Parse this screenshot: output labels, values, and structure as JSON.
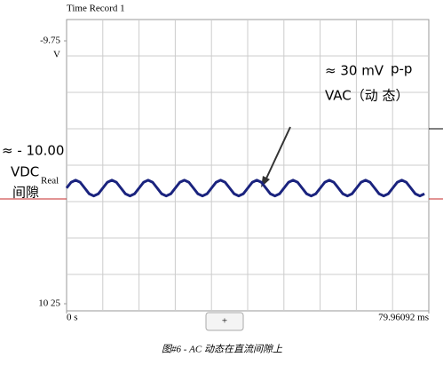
{
  "chart_data": {
    "type": "line",
    "title": "Time Record 1",
    "y_unit": "V",
    "x": [
      0,
      1,
      2,
      3,
      4,
      5,
      6,
      7,
      8,
      9,
      10,
      11,
      12,
      13,
      14,
      15,
      16,
      17,
      18,
      19,
      20,
      21,
      22,
      23,
      24,
      25,
      26,
      27,
      28,
      29,
      30,
      31,
      32,
      33,
      34,
      35,
      36,
      37,
      38,
      39,
      40,
      41,
      42,
      43,
      44,
      45,
      46,
      47,
      48,
      49,
      50,
      51,
      52,
      53,
      54,
      55,
      56,
      57,
      58,
      59,
      60,
      61,
      62,
      63,
      64,
      65,
      66,
      67,
      68,
      69,
      70,
      71,
      72,
      73,
      74,
      75,
      76,
      77,
      78,
      79
    ],
    "series": [
      {
        "name": "Real",
        "color": "#1a237e",
        "values": [
          -10.03,
          -10.019,
          -10.015,
          -10.019,
          -10.03,
          -10.041,
          -10.045,
          -10.041,
          -10.03,
          -10.019,
          -10.015,
          -10.019,
          -10.03,
          -10.041,
          -10.045,
          -10.041,
          -10.03,
          -10.019,
          -10.015,
          -10.019,
          -10.03,
          -10.041,
          -10.045,
          -10.041,
          -10.03,
          -10.019,
          -10.015,
          -10.019,
          -10.03,
          -10.041,
          -10.045,
          -10.041,
          -10.03,
          -10.019,
          -10.015,
          -10.019,
          -10.03,
          -10.041,
          -10.045,
          -10.041,
          -10.03,
          -10.019,
          -10.015,
          -10.019,
          -10.03,
          -10.041,
          -10.045,
          -10.041,
          -10.03,
          -10.019,
          -10.015,
          -10.019,
          -10.03,
          -10.041,
          -10.045,
          -10.041,
          -10.03,
          -10.019,
          -10.015,
          -10.019,
          -10.03,
          -10.041,
          -10.045,
          -10.041,
          -10.03,
          -10.019,
          -10.015,
          -10.019,
          -10.03,
          -10.041,
          -10.045,
          -10.041,
          -10.03,
          -10.019,
          -10.015,
          -10.019,
          -10.03,
          -10.041,
          -10.045,
          -10.041
        ]
      }
    ],
    "xlim": [
      0,
      79.96092
    ],
    "xticks": [
      {
        "value": 0,
        "label": "0 s"
      },
      {
        "value": 79.96092,
        "label": "79.96092 ms"
      }
    ],
    "ylim": [
      -10.25,
      -9.75
    ],
    "yticks": [
      -9.75,
      {
        "value": -10.25,
        "label": "10 25"
      }
    ],
    "grid": true,
    "annotations": [
      "≈ 30 mV",
      "p-p",
      "VAC（动 态）",
      "≈ - 10.00",
      "VDC",
      "间隙"
    ],
    "button": "+",
    "caption": "图#6 - AC  动态在直流间隙上"
  }
}
